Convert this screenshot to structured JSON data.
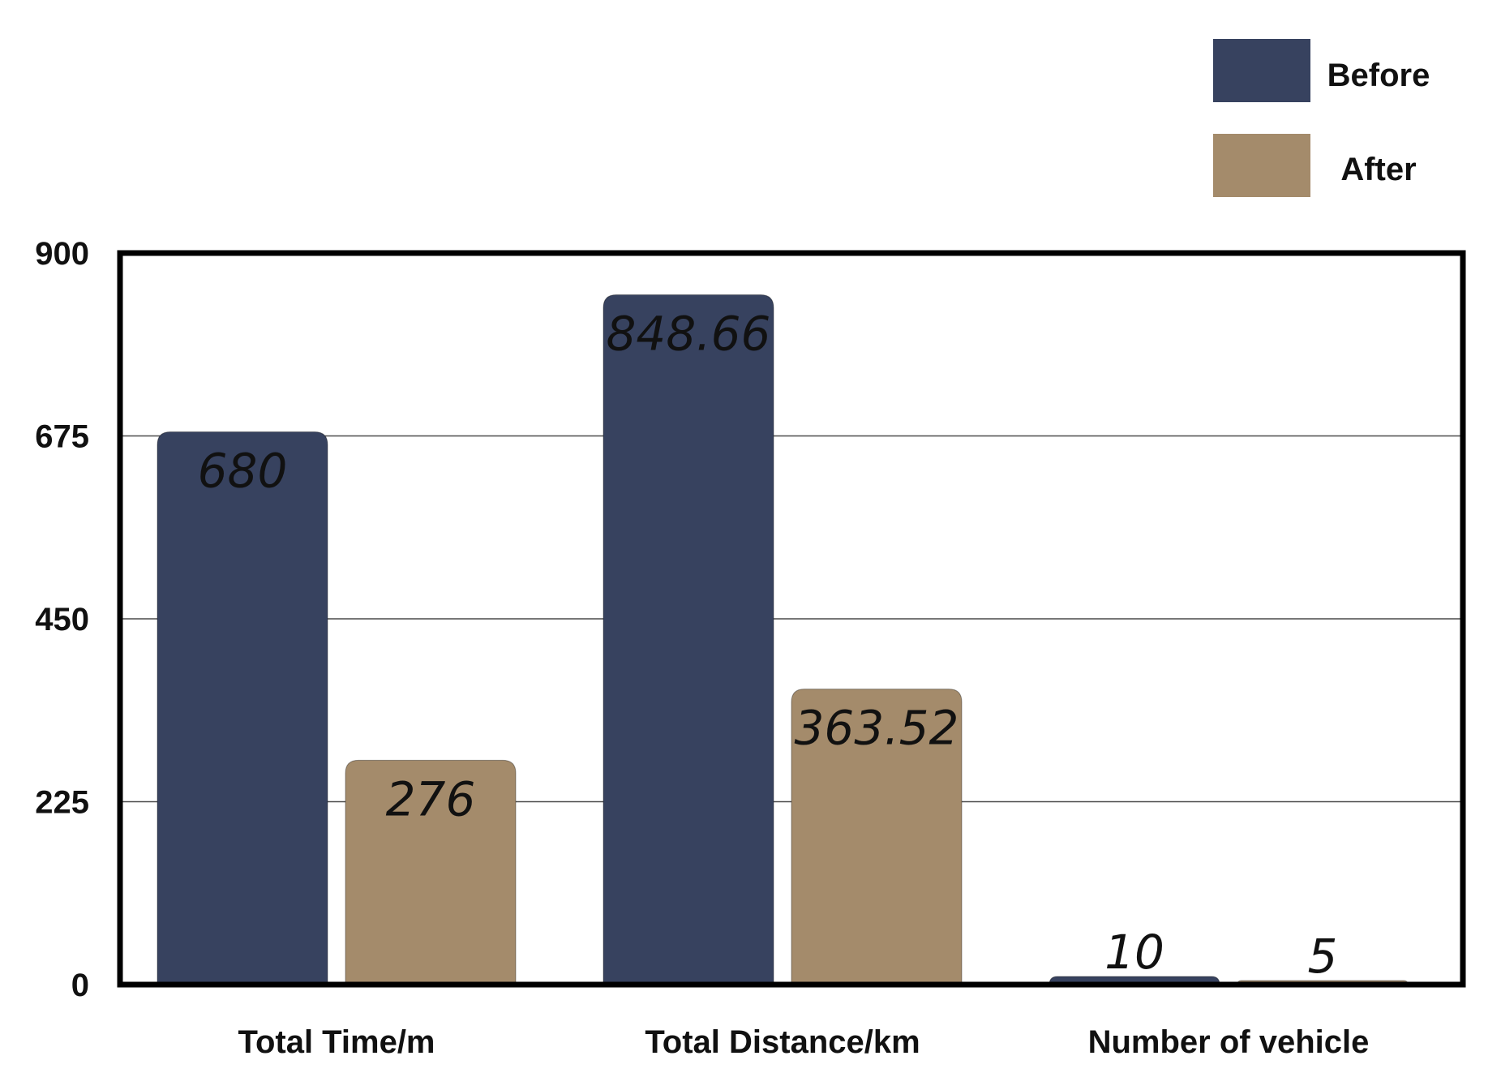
{
  "chart_data": {
    "type": "bar",
    "title": "",
    "xlabel": "",
    "ylabel": "",
    "categories": [
      "Total Time/m",
      "Total Distance/km",
      "Number of vehicle"
    ],
    "series": [
      {
        "name": "Before",
        "color": "#37425f",
        "values": [
          680,
          848.66,
          10
        ],
        "labels": [
          "680",
          "848.66",
          "10"
        ]
      },
      {
        "name": "After",
        "color": "#a48b6b",
        "values": [
          276,
          363.52,
          5
        ],
        "labels": [
          "276",
          "363.52",
          "5"
        ]
      }
    ],
    "ylim": [
      0,
      900
    ],
    "yticks": [
      0,
      225,
      450,
      675,
      900
    ],
    "grid": true,
    "legend_position": "top-right"
  }
}
